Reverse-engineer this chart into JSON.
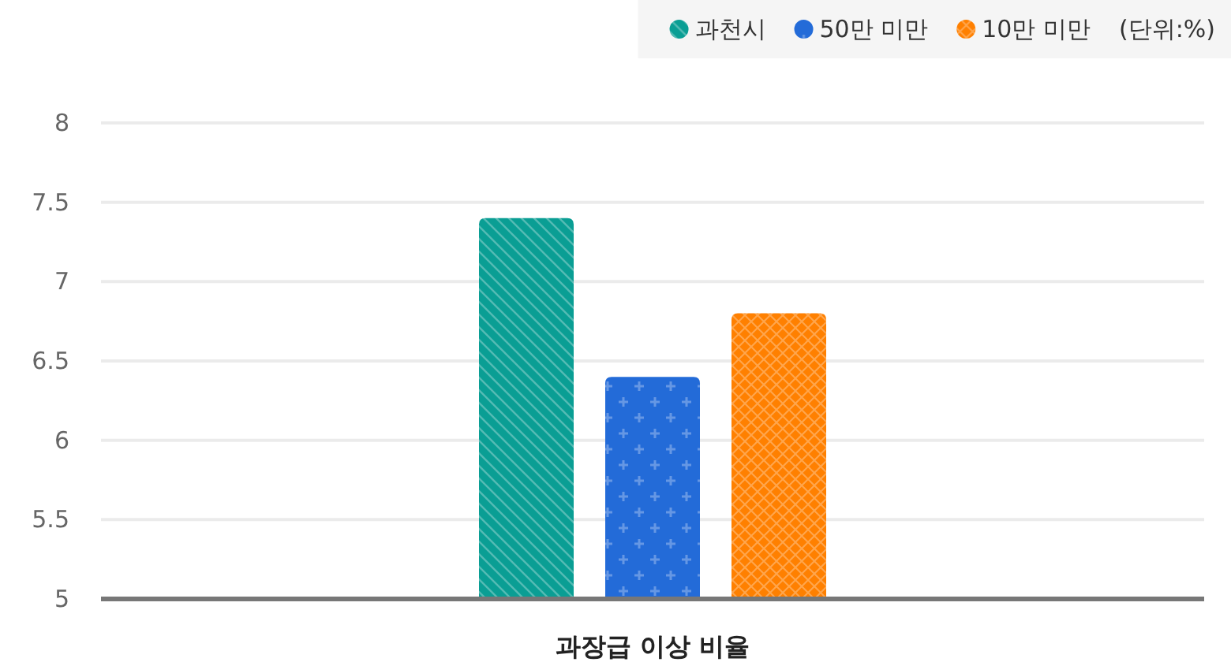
{
  "chart_data": {
    "type": "bar",
    "categories": [
      "과장급 이상 비율"
    ],
    "series": [
      {
        "name": "과천시",
        "color": "#0a9e94",
        "values": [
          7.4
        ]
      },
      {
        "name": "50만 미만",
        "color": "#236bd8",
        "values": [
          6.4
        ]
      },
      {
        "name": "10만 미만",
        "color": "#ff8000",
        "values": [
          6.8
        ]
      }
    ],
    "ylim": [
      5,
      8
    ],
    "yticks": [
      5,
      5.5,
      6,
      6.5,
      7,
      7.5,
      8
    ],
    "grid": "y",
    "legend": "top right",
    "annotations": [
      "(단위:%)"
    ]
  }
}
